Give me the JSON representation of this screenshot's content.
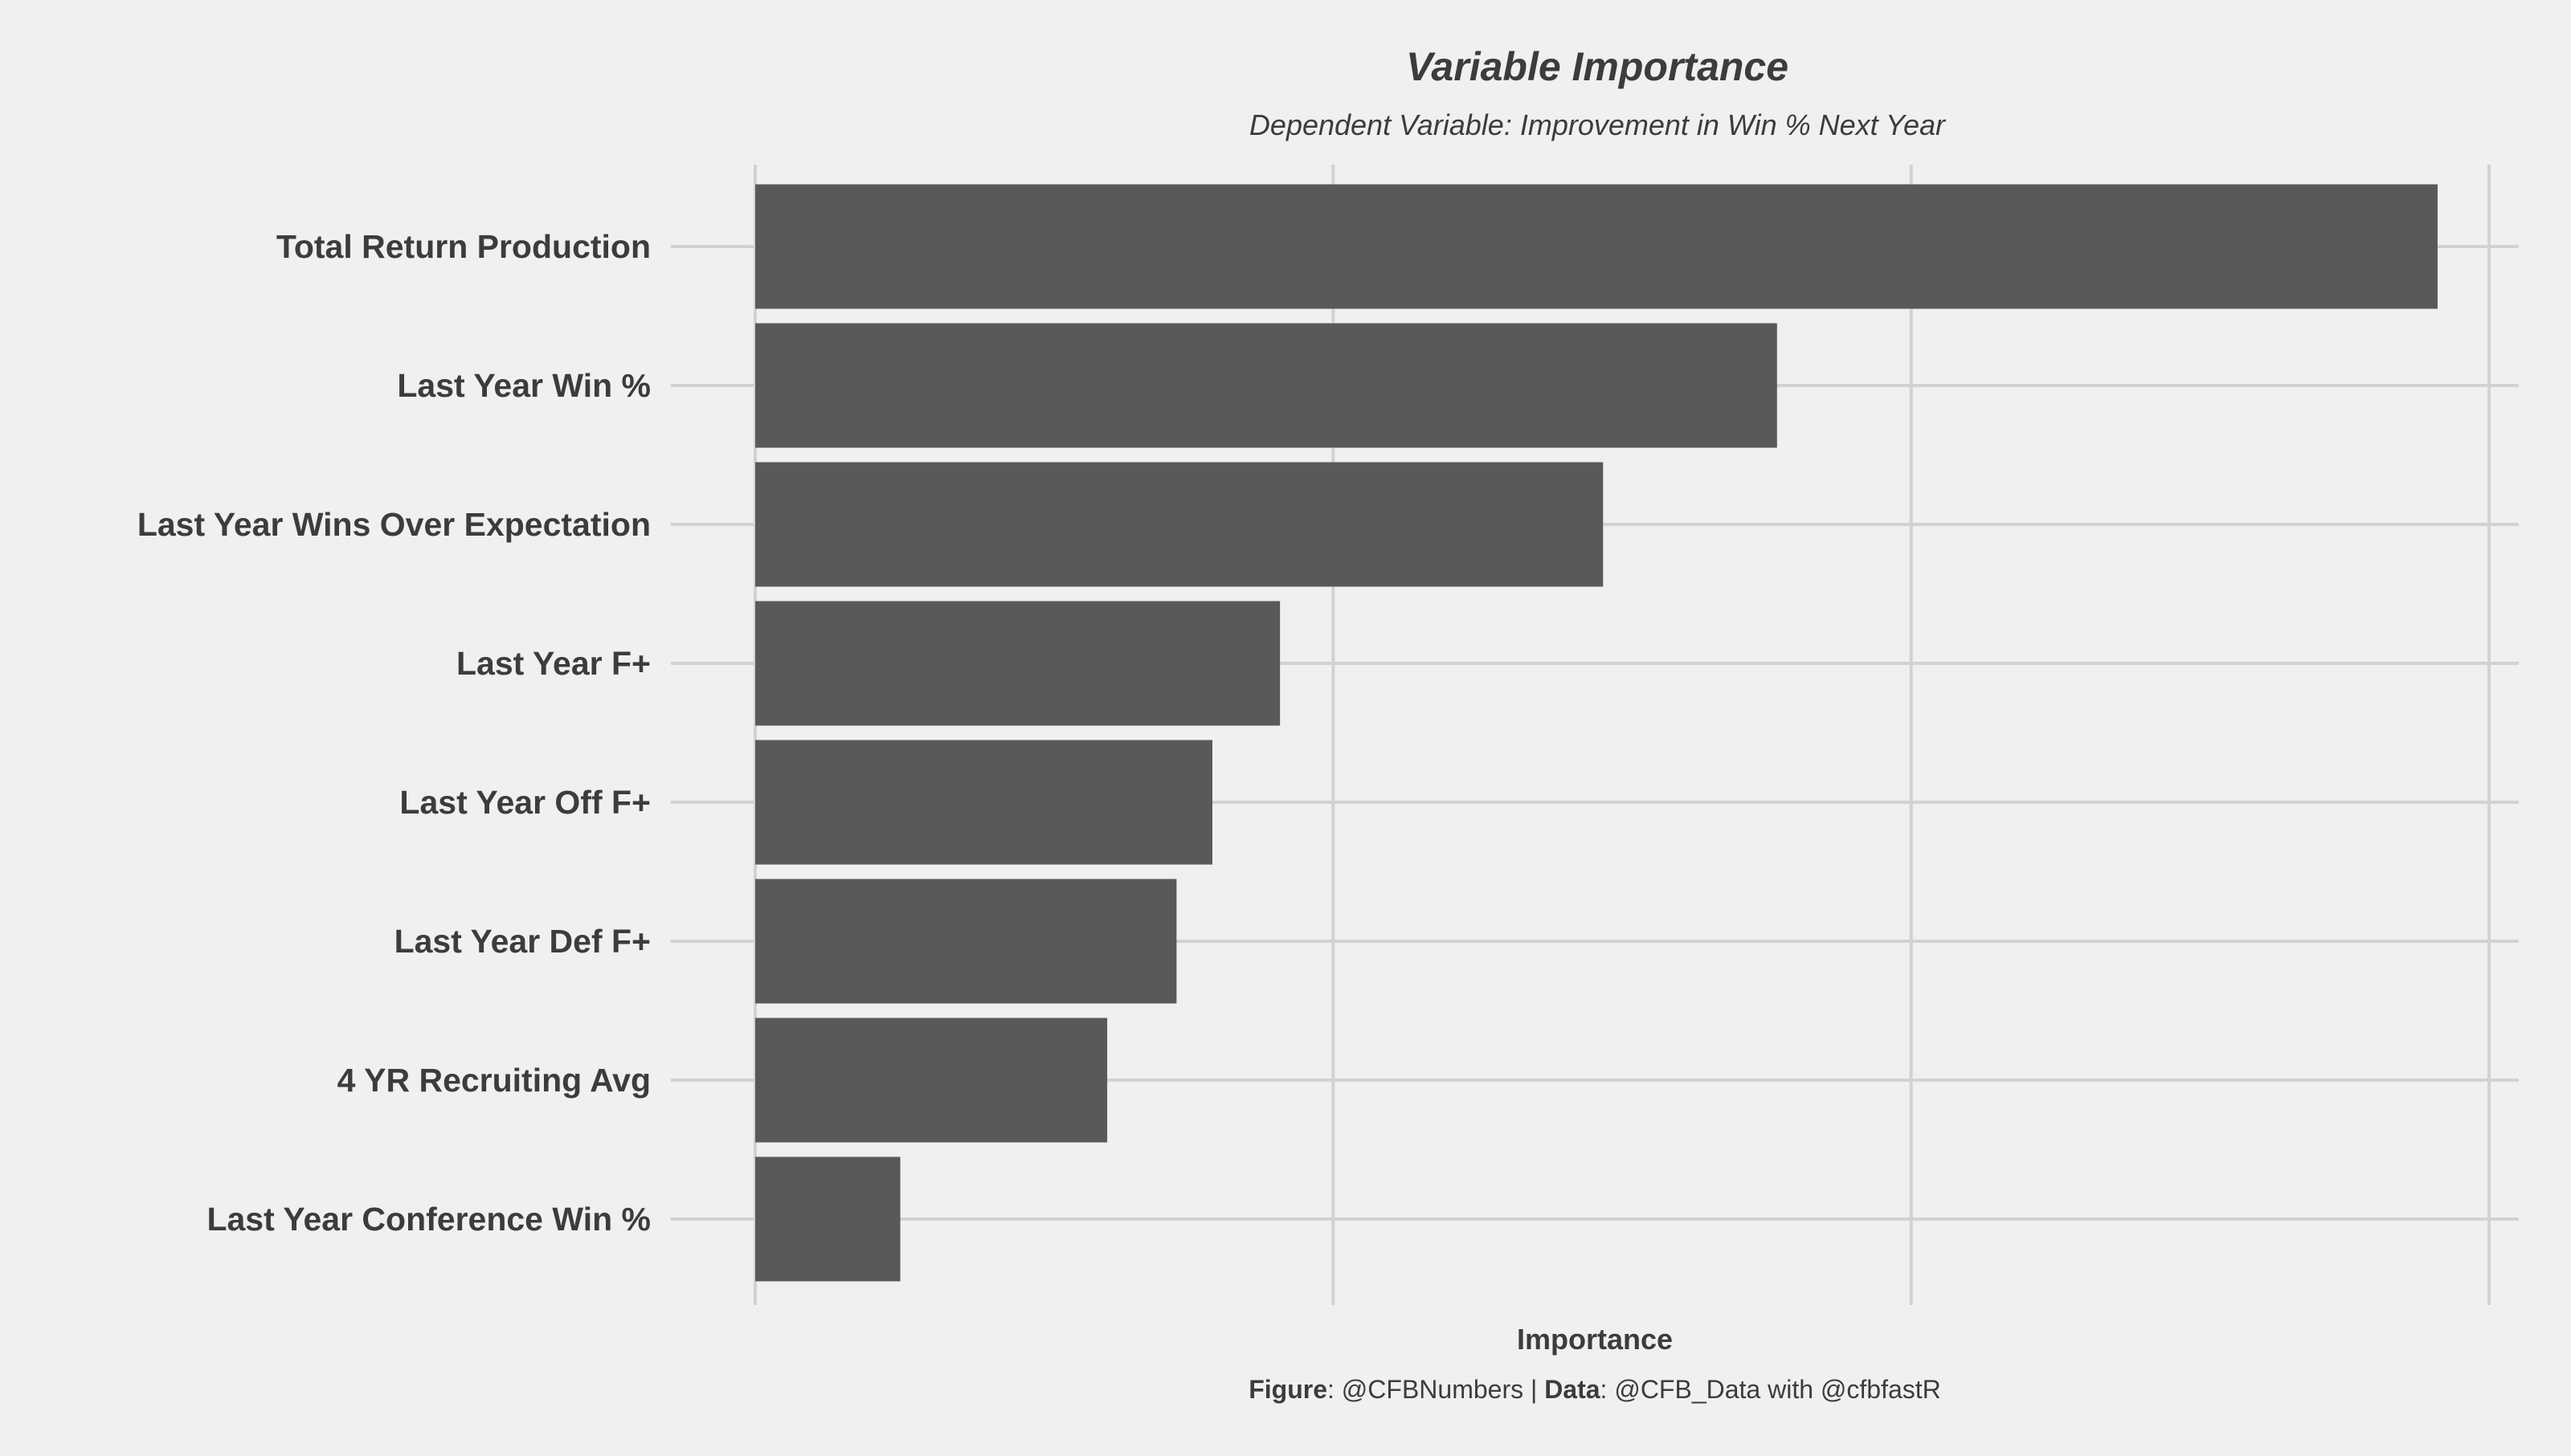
{
  "chart_data": {
    "type": "bar",
    "orientation": "horizontal",
    "title": "Variable Importance",
    "subtitle": "Dependent Variable: Improvement in Win % Next Year",
    "xlabel": "Importance",
    "ylabel": "",
    "categories": [
      "Total Return Production",
      "Last Year Win %",
      "Last Year Wins Over Expectation",
      "Last Year F+",
      "Last Year Off F+",
      "Last Year Def F+",
      "4 YR Recruiting Avg",
      "Last Year Conference Win %"
    ],
    "values": [
      0.2911,
      0.1768,
      0.1467,
      0.0908,
      0.0791,
      0.0729,
      0.0609,
      0.0251
    ],
    "xlim": [
      0,
      0.3
    ],
    "x_gridlines": [
      0,
      0.1,
      0.2,
      0.3
    ],
    "x_tick_labels_shown": false,
    "grid": true,
    "legend": "none",
    "bar_color": "#595959",
    "background_color": "#f0f0f0",
    "grid_color": "#d2d2d2",
    "text_color": "#3c3c3c"
  },
  "caption": {
    "figure_label": "Figure",
    "figure_value": ": @CFBNumbers | ",
    "data_label": "Data",
    "data_value": ": @CFB_Data with @cfbfastR"
  }
}
